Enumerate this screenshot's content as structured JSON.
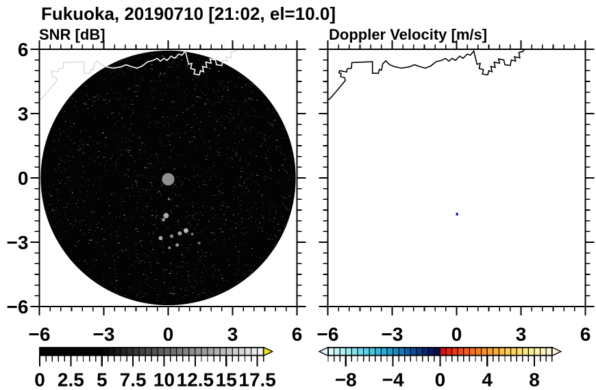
{
  "title": "Fukuoka, 20190710 [21:02, el=10.0]",
  "observation": {
    "site": "Fukuoka",
    "date": "20190710",
    "time": "21:02",
    "elevation": "10.0"
  },
  "panels": [
    {
      "id": "snr",
      "label": "SNR [dB]"
    },
    {
      "id": "velocity",
      "label": "Doppler Velocity [m/s]"
    }
  ],
  "axes": {
    "xlim": [
      -6,
      6
    ],
    "ylim": [
      -6,
      6
    ],
    "major_tick_step": 3,
    "minor_tick_step": 0.5,
    "x_tick_values": [
      -6,
      -3,
      0,
      3,
      6
    ],
    "x_tick_labels": [
      "−6",
      "−3",
      "0",
      "3",
      "6"
    ],
    "y_tick_values": [
      6,
      3,
      0,
      -3,
      -6
    ],
    "y_tick_labels": [
      "6",
      "3",
      "0",
      "−3",
      "−6"
    ]
  },
  "coastline_km": [
    [
      -6.25,
      3.4
    ],
    [
      -5.85,
      3.75
    ],
    [
      -5.55,
      4.1
    ],
    [
      -5.3,
      4.4
    ],
    [
      -5.18,
      4.55
    ],
    [
      -5.22,
      4.68
    ],
    [
      -5.4,
      4.72
    ],
    [
      -5.38,
      4.88
    ],
    [
      -5.48,
      4.9
    ],
    [
      -5.45,
      5.0
    ],
    [
      -5.12,
      4.94
    ],
    [
      -5.1,
      5.08
    ],
    [
      -4.9,
      5.12
    ],
    [
      -4.88,
      5.38
    ],
    [
      -3.92,
      5.42
    ],
    [
      -3.92,
      4.88
    ],
    [
      -3.64,
      4.88
    ],
    [
      -3.6,
      5.06
    ],
    [
      -3.5,
      5.02
    ],
    [
      -3.44,
      5.32
    ],
    [
      -3.3,
      5.46
    ],
    [
      -3.12,
      5.28
    ],
    [
      -2.86,
      5.18
    ],
    [
      -2.56,
      5.12
    ],
    [
      -2.2,
      5.18
    ],
    [
      -1.96,
      5.28
    ],
    [
      -1.74,
      5.2
    ],
    [
      -1.46,
      5.12
    ],
    [
      -1.2,
      5.22
    ],
    [
      -0.96,
      5.42
    ],
    [
      -0.7,
      5.48
    ],
    [
      -0.52,
      5.58
    ],
    [
      -0.36,
      5.44
    ],
    [
      -0.2,
      5.58
    ],
    [
      -0.05,
      5.48
    ],
    [
      0.14,
      5.68
    ],
    [
      0.3,
      5.58
    ],
    [
      0.5,
      5.78
    ],
    [
      0.64,
      5.72
    ],
    [
      0.8,
      5.92
    ],
    [
      0.95,
      5.3
    ],
    [
      1.1,
      5.34
    ],
    [
      1.05,
      5.1
    ],
    [
      1.25,
      5.05
    ],
    [
      1.2,
      4.85
    ],
    [
      1.45,
      4.8
    ],
    [
      1.5,
      5.0
    ],
    [
      1.65,
      4.95
    ],
    [
      1.6,
      5.2
    ],
    [
      1.8,
      5.15
    ],
    [
      1.75,
      5.4
    ],
    [
      2.0,
      5.35
    ],
    [
      1.95,
      5.55
    ],
    [
      2.2,
      5.5
    ],
    [
      2.25,
      5.28
    ],
    [
      2.5,
      5.24
    ],
    [
      2.55,
      5.5
    ],
    [
      2.75,
      5.45
    ],
    [
      2.7,
      5.65
    ],
    [
      2.95,
      5.6
    ],
    [
      2.9,
      5.85
    ],
    [
      3.1,
      5.9
    ],
    [
      3.18,
      6.05
    ]
  ],
  "chart_data": [
    {
      "type": "radar_ppi",
      "panel": "SNR [dB]",
      "units": "dB",
      "scan": {
        "center_km": [
          0,
          0
        ],
        "radius_km": 5.94,
        "field_note": "near-zero SNR noise field rendered black with gray speckle"
      },
      "center_blind_zone": {
        "x_km": 0,
        "y_km": 0,
        "radius_km": 0.29,
        "color": "#8f8f8f"
      },
      "echo_blobs": [
        [
          -0.1,
          -1.76,
          4,
          "#b4b4b4"
        ],
        [
          -0.22,
          -1.95,
          2.5,
          "#989898"
        ],
        [
          0.83,
          -2.46,
          3.5,
          "#c2c2c2"
        ],
        [
          0.54,
          -2.59,
          3,
          "#a8a8a8"
        ],
        [
          0.16,
          -2.72,
          2.5,
          "#9a9a9a"
        ],
        [
          -0.35,
          -2.81,
          3,
          "#b4b4b4"
        ],
        [
          0.42,
          -3.13,
          2.5,
          "#a0a0a0"
        ],
        [
          0.06,
          -3.26,
          2,
          "#909090"
        ],
        [
          1.44,
          -3.04,
          2,
          "#787878"
        ],
        [
          1.12,
          -2.62,
          2,
          "#828282"
        ],
        [
          0.03,
          -0.99,
          1.5,
          "#8a8a8a"
        ]
      ],
      "noise": {
        "seed": 20190710,
        "speck_count": 1500,
        "streak_count": 70
      },
      "colorbar": {
        "range": [
          0,
          18
        ],
        "cell_step": 0.5,
        "minor_step": 0.5,
        "tick_values": [
          0,
          2.5,
          5,
          7.5,
          10,
          12.5,
          15,
          17.5
        ],
        "tick_labels": [
          "0",
          "2.5",
          "5",
          "7.5",
          "10",
          "12.5",
          "15",
          "17.5"
        ],
        "under_arrow_color": null,
        "over_arrow_color": "#f4e90a",
        "cell_colors": [
          "#000000",
          "#000000",
          "#000000",
          "#000000",
          "#000000",
          "#000000",
          "#000000",
          "#000000",
          "#000000",
          "#000000",
          "#0a0a0a",
          "#131313",
          "#1c1c1c",
          "#262626",
          "#2f2f2f",
          "#383838",
          "#424242",
          "#4b4b4b",
          "#545454",
          "#5e5e5e",
          "#676767",
          "#707070",
          "#7a7a7a",
          "#838383",
          "#8c8c8c",
          "#969696",
          "#9f9f9f",
          "#a8a8a8",
          "#b2b2b2",
          "#bbbbbb",
          "#c4c4c4",
          "#cecece",
          "#d7d7d7",
          "#e0e0e0",
          "#eaeaea",
          "#f3f3f3"
        ]
      }
    },
    {
      "type": "radar_ppi",
      "panel": "Doppler Velocity [m/s]",
      "units": "m/s",
      "data_points": [
        {
          "x_km": 0.02,
          "y_km": -1.69,
          "color": "#0011cc"
        }
      ],
      "colorbar": {
        "range": [
          -9.5,
          9.5
        ],
        "cell_step": 0.5,
        "minor_step": 0.5,
        "tick_values": [
          -8,
          -4,
          0,
          4,
          8
        ],
        "tick_labels": [
          "−8",
          "−4",
          "0",
          "4",
          "8"
        ],
        "under_arrow_color": "#e4fbfb",
        "over_arrow_color": "#faf6dc",
        "cell_colors": [
          "#d9f8f8",
          "#c6f4f6",
          "#b2eff4",
          "#9ce9f1",
          "#86e2ee",
          "#6fdaeb",
          "#59d2e7",
          "#45c8e2",
          "#34bcdc",
          "#29add5",
          "#219ccc",
          "#1b8ac2",
          "#1676b6",
          "#1162a8",
          "#0d4e98",
          "#0a3a86",
          "#072972",
          "#04195e",
          "#020c48",
          "#d90f0f",
          "#e62311",
          "#ee3613",
          "#f34a15",
          "#f65d18",
          "#f96f1b",
          "#fa801f",
          "#fb9126",
          "#fca12e",
          "#fcb039",
          "#fdbd45",
          "#fdca52",
          "#fdd560",
          "#fde070",
          "#fde981",
          "#fdf094",
          "#fdf4a8",
          "#fcf6bd",
          "#fbf7d0"
        ]
      }
    }
  ],
  "colors": {
    "frame": "#000000",
    "background": "#ffffff",
    "snr_field": "#030303",
    "coastline_on_data": "#ffffff",
    "coastline_on_white_faint": "#d9d9d9",
    "coastline_velocity": "#000000",
    "noise_speck": "#cccccc"
  }
}
